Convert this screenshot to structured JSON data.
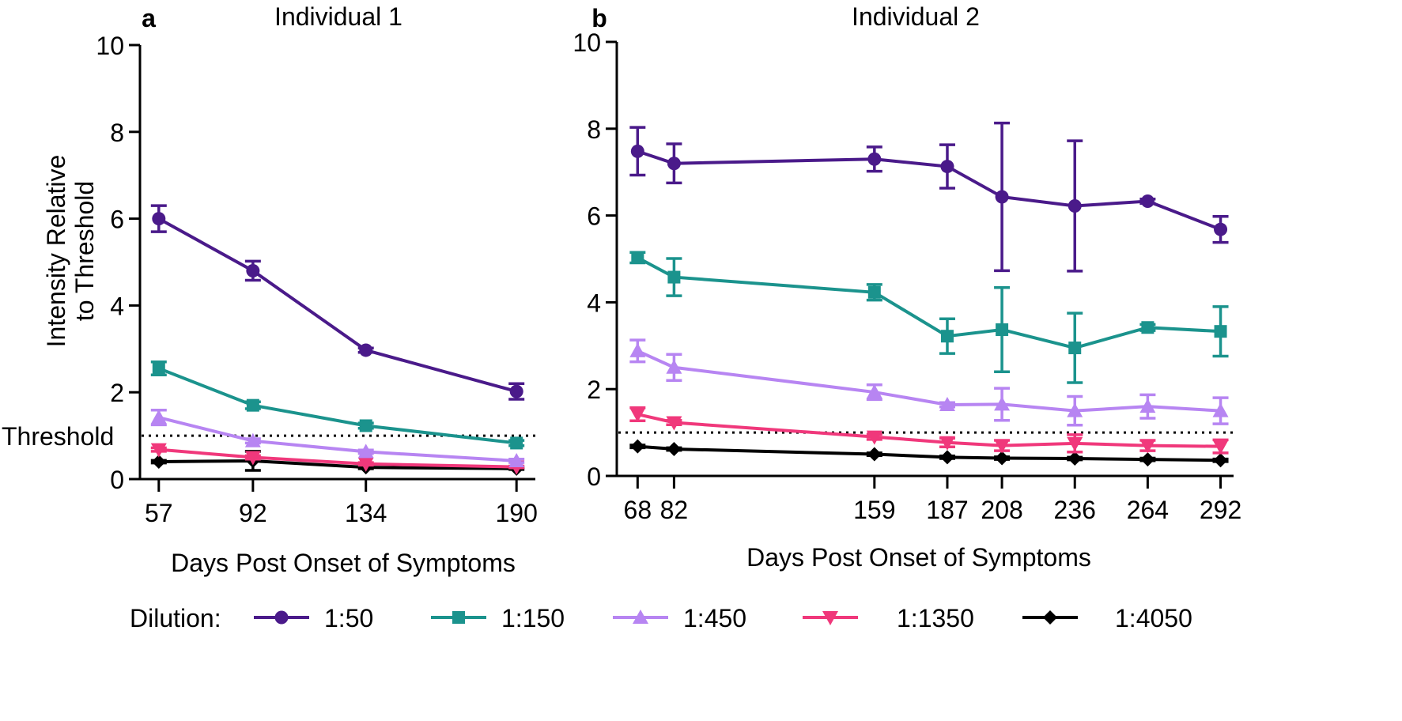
{
  "colors": {
    "1:50": "#4a1a8a",
    "1:150": "#1b938d",
    "1:450": "#b785f2",
    "1:1350": "#f0387b",
    "1:4050": "#000000",
    "axis": "#000000"
  },
  "legend": {
    "title": "Dilution:",
    "items": [
      "1:50",
      "1:150",
      "1:450",
      "1:1350",
      "1:4050"
    ]
  },
  "threshold_label": "Threshold",
  "chart_data": [
    {
      "type": "line",
      "panel_label": "a",
      "title": "Individual  1",
      "xlabel": "Days Post Onset of Symptoms",
      "ylabel": "Intensity Relative to Threshold",
      "ylabel_lines": [
        "Intensity Relative",
        "to Threshold"
      ],
      "ylim": [
        0,
        10
      ],
      "yticks": [
        0,
        2,
        4,
        6,
        8,
        10
      ],
      "xlim": [
        50,
        197
      ],
      "x": [
        57,
        92,
        134,
        190
      ],
      "threshold": 1,
      "series": [
        {
          "name": "1:50",
          "marker": "circle",
          "values": [
            6.0,
            4.8,
            2.97,
            2.02
          ],
          "err": [
            0.3,
            0.22,
            0.05,
            0.18
          ]
        },
        {
          "name": "1:150",
          "marker": "square",
          "values": [
            2.55,
            1.7,
            1.23,
            0.83
          ],
          "err": [
            0.15,
            0.08,
            0.06,
            0.06
          ]
        },
        {
          "name": "1:450",
          "marker": "triangle-up",
          "values": [
            1.42,
            0.88,
            0.63,
            0.42
          ],
          "err": [
            0.17,
            0.05,
            0.04,
            0.04
          ]
        },
        {
          "name": "1:1350",
          "marker": "triangle-down",
          "values": [
            0.68,
            0.5,
            0.35,
            0.28
          ],
          "err": [
            0.04,
            0.04,
            0.03,
            0.02
          ]
        },
        {
          "name": "1:4050",
          "marker": "diamond",
          "values": [
            0.4,
            0.42,
            0.27,
            0.24
          ],
          "err": [
            0.03,
            0.22,
            0.03,
            0.02
          ]
        }
      ]
    },
    {
      "type": "line",
      "panel_label": "b",
      "title": "Individual 2",
      "xlabel": "Days Post Onset of Symptoms",
      "ylabel": "",
      "ylim": [
        0,
        10
      ],
      "yticks": [
        0,
        2,
        4,
        6,
        8,
        10
      ],
      "xlim": [
        60,
        297
      ],
      "x": [
        68,
        82,
        159,
        187,
        208,
        236,
        264,
        292
      ],
      "threshold": 1,
      "series": [
        {
          "name": "1:50",
          "marker": "circle",
          "values": [
            7.48,
            7.2,
            7.3,
            7.13,
            6.43,
            6.22,
            6.33,
            5.68
          ],
          "err": [
            0.55,
            0.45,
            0.28,
            0.5,
            1.7,
            1.5,
            0.05,
            0.3
          ]
        },
        {
          "name": "1:150",
          "marker": "square",
          "values": [
            5.03,
            4.58,
            4.23,
            3.22,
            3.37,
            2.95,
            3.42,
            3.33
          ],
          "err": [
            0.12,
            0.43,
            0.18,
            0.4,
            0.97,
            0.8,
            0.07,
            0.57
          ]
        },
        {
          "name": "1:450",
          "marker": "triangle-up",
          "values": [
            2.88,
            2.5,
            1.93,
            1.64,
            1.65,
            1.5,
            1.6,
            1.5
          ],
          "err": [
            0.25,
            0.3,
            0.17,
            0.05,
            0.37,
            0.33,
            0.27,
            0.3
          ]
        },
        {
          "name": "1:1350",
          "marker": "triangle-down",
          "values": [
            1.42,
            1.23,
            0.9,
            0.77,
            0.7,
            0.75,
            0.7,
            0.68
          ],
          "err": [
            0.15,
            0.05,
            0.06,
            0.1,
            0.12,
            0.2,
            0.12,
            0.15
          ]
        },
        {
          "name": "1:4050",
          "marker": "diamond",
          "values": [
            0.68,
            0.62,
            0.5,
            0.43,
            0.41,
            0.4,
            0.38,
            0.36
          ],
          "err": [
            0.03,
            0.03,
            0.03,
            0.03,
            0.03,
            0.03,
            0.03,
            0.03
          ]
        }
      ]
    }
  ]
}
